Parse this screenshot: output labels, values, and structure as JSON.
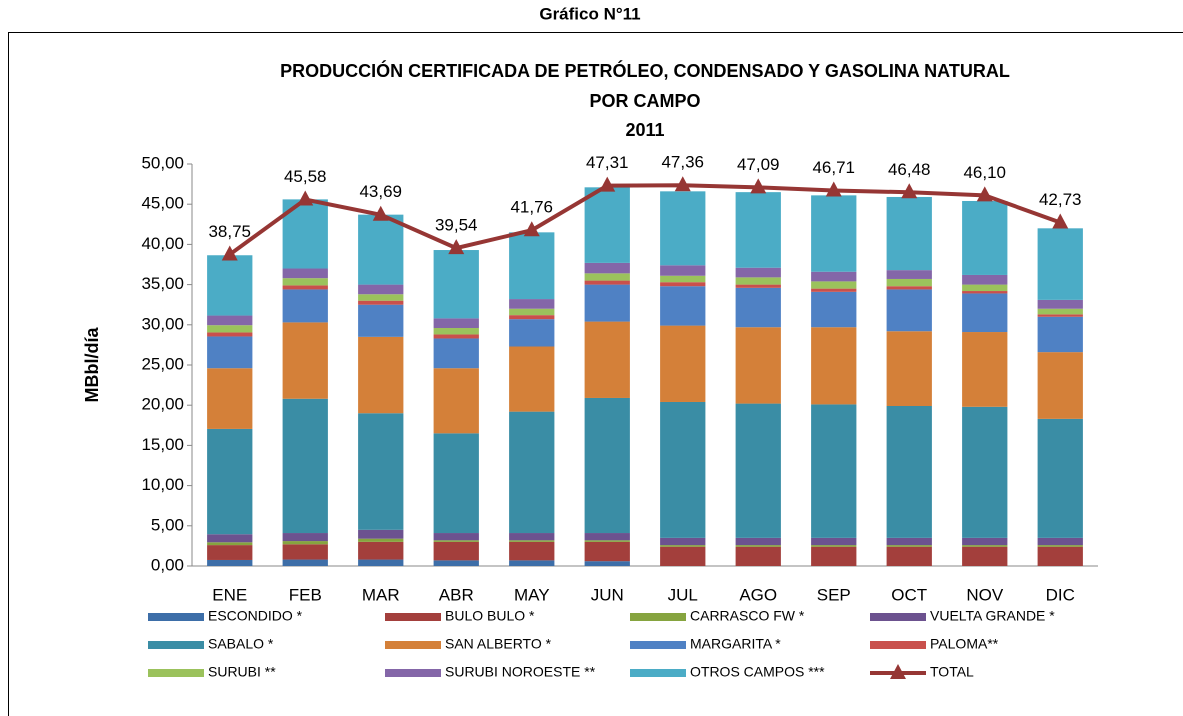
{
  "header": "Gráfico N°11",
  "chart_data": {
    "type": "bar",
    "stacked": true,
    "title": "PRODUCCIÓN CERTIFICADA DE PETRÓLEO, CONDENSADO Y GASOLINA NATURAL",
    "subtitle": "POR  CAMPO",
    "subtitle2": "2011",
    "y_label": "MBbl/día",
    "categories": [
      "ENE",
      "FEB",
      "MAR",
      "ABR",
      "MAY",
      "JUN",
      "JUL",
      "AGO",
      "SEP",
      "OCT",
      "NOV",
      "DIC"
    ],
    "ylim": [
      0,
      50
    ],
    "yticks": [
      {
        "value": 0,
        "label": "0,00"
      },
      {
        "value": 5,
        "label": "5,00"
      },
      {
        "value": 10,
        "label": "10,00"
      },
      {
        "value": 15,
        "label": "15,00"
      },
      {
        "value": 20,
        "label": "20,00"
      },
      {
        "value": 25,
        "label": "25,00"
      },
      {
        "value": 30,
        "label": "30,00"
      },
      {
        "value": 35,
        "label": "35,00"
      },
      {
        "value": 40,
        "label": "40,00"
      },
      {
        "value": 45,
        "label": "45,00"
      },
      {
        "value": 50,
        "label": "50,00"
      }
    ],
    "series": [
      {
        "name": "ESCONDIDO *",
        "color": "#3d6ea8",
        "values": [
          0.75,
          0.8,
          0.8,
          0.7,
          0.7,
          0.6,
          0,
          0,
          0,
          0,
          0,
          0
        ]
      },
      {
        "name": "BULO BULO *",
        "color": "#a33f3c",
        "values": [
          1.85,
          1.9,
          2.2,
          2.3,
          2.3,
          2.4,
          2.4,
          2.4,
          2.4,
          2.4,
          2.4,
          2.4
        ]
      },
      {
        "name": "CARRASCO FW *",
        "color": "#86a43f",
        "values": [
          0.35,
          0.4,
          0.4,
          0.2,
          0.2,
          0.2,
          0.2,
          0.2,
          0.2,
          0.2,
          0.2,
          0.2
        ]
      },
      {
        "name": "VUELTA GRANDE *",
        "color": "#6c528f",
        "values": [
          1.0,
          1.0,
          1.1,
          0.9,
          0.9,
          0.9,
          0.9,
          0.9,
          0.9,
          0.9,
          0.9,
          0.9
        ]
      },
      {
        "name": "SABALO *",
        "color": "#3a8da5",
        "values": [
          13.1,
          16.7,
          14.5,
          12.4,
          15.1,
          16.8,
          16.9,
          16.7,
          16.6,
          16.4,
          16.3,
          14.8
        ]
      },
      {
        "name": "SAN ALBERTO *",
        "color": "#d48039",
        "values": [
          7.55,
          9.5,
          9.5,
          8.1,
          8.1,
          9.5,
          9.5,
          9.5,
          9.6,
          9.3,
          9.3,
          8.3
        ]
      },
      {
        "name": "MARGARITA *",
        "color": "#4f81c4",
        "values": [
          3.95,
          4.1,
          4.0,
          3.7,
          3.4,
          4.6,
          4.9,
          4.9,
          4.4,
          5.2,
          4.8,
          4.4
        ]
      },
      {
        "name": "PALOMA**",
        "color": "#c9504c",
        "values": [
          0.5,
          0.5,
          0.5,
          0.5,
          0.5,
          0.5,
          0.5,
          0.4,
          0.4,
          0.4,
          0.3,
          0.3
        ]
      },
      {
        "name": "SURUBI **",
        "color": "#9bc25c",
        "values": [
          0.9,
          0.9,
          0.8,
          0.8,
          0.8,
          0.9,
          0.8,
          0.9,
          0.9,
          0.9,
          0.8,
          0.7
        ]
      },
      {
        "name": "SURUBI NOROESTE **",
        "color": "#8466a8",
        "values": [
          1.2,
          1.2,
          1.2,
          1.2,
          1.2,
          1.3,
          1.3,
          1.2,
          1.2,
          1.1,
          1.2,
          1.1
        ]
      },
      {
        "name": "OTROS CAMPOS ***",
        "color": "#4bacc6",
        "values": [
          7.5,
          8.6,
          8.7,
          8.5,
          8.3,
          9.4,
          9.2,
          9.4,
          9.5,
          9.1,
          9.2,
          8.9
        ]
      },
      {
        "name": "TOTAL",
        "type": "line",
        "color": "#963634",
        "values": [
          38.75,
          45.58,
          43.69,
          39.54,
          41.76,
          47.31,
          47.36,
          47.09,
          46.71,
          46.48,
          46.1,
          42.73
        ],
        "value_labels": [
          "38,75",
          "45,58",
          "43,69",
          "39,54",
          "41,76",
          "47,31",
          "47,36",
          "47,09",
          "46,71",
          "46,48",
          "46,10",
          "42,73"
        ]
      }
    ]
  }
}
